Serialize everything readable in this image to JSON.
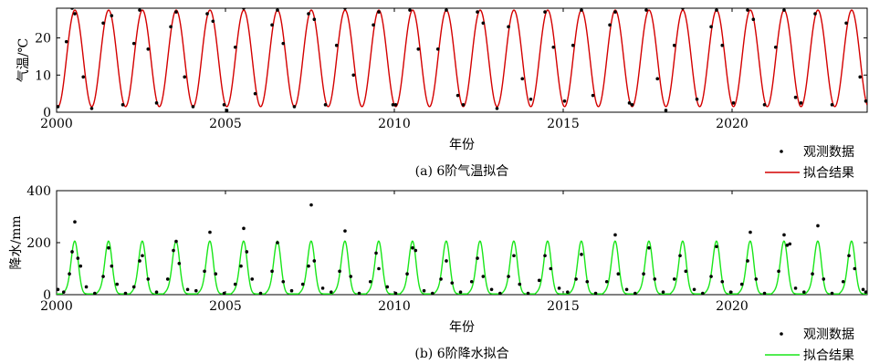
{
  "chart_data": [
    {
      "type": "scatter",
      "panel": "a",
      "caption": "(a) 6阶气温拟合",
      "xlabel": "年份",
      "ylabel": "气温/℃",
      "xlim": [
        2000,
        2024
      ],
      "ylim": [
        0,
        28
      ],
      "xticks": [
        2000,
        2005,
        2010,
        2015,
        2020
      ],
      "yticks": [
        0,
        10,
        20
      ],
      "grid": false,
      "legend_position": "bottom-right",
      "fit_model": {
        "kind": "annual-harmonic",
        "mean": 14.5,
        "amplitude": 13.0,
        "peak_month": 7.0
      },
      "series": [
        {
          "name": "观测数据",
          "style": "markers",
          "color": "#000000",
          "points": [
            [
              2000.04,
              1.5
            ],
            [
              2000.29,
              19.0
            ],
            [
              2000.46,
              28.0
            ],
            [
              2000.54,
              26.5
            ],
            [
              2000.79,
              9.5
            ],
            [
              2001.04,
              1.0
            ],
            [
              2001.38,
              24.0
            ],
            [
              2001.54,
              28.5
            ],
            [
              2001.63,
              26.0
            ],
            [
              2001.96,
              2.0
            ],
            [
              2002.29,
              18.5
            ],
            [
              2002.46,
              27.5
            ],
            [
              2002.71,
              17.0
            ],
            [
              2002.96,
              2.5
            ],
            [
              2003.38,
              23.0
            ],
            [
              2003.54,
              27.0
            ],
            [
              2003.79,
              9.5
            ],
            [
              2004.04,
              1.5
            ],
            [
              2004.46,
              26.5
            ],
            [
              2004.63,
              24.5
            ],
            [
              2004.96,
              2.0
            ],
            [
              2005.04,
              0.5
            ],
            [
              2005.29,
              17.5
            ],
            [
              2005.54,
              28.0
            ],
            [
              2005.88,
              5.0
            ],
            [
              2006.38,
              23.5
            ],
            [
              2006.54,
              27.5
            ],
            [
              2006.71,
              18.5
            ],
            [
              2007.04,
              1.5
            ],
            [
              2007.46,
              26.5
            ],
            [
              2007.63,
              25.0
            ],
            [
              2007.96,
              2.0
            ],
            [
              2008.04,
              -1.0
            ],
            [
              2008.29,
              18.0
            ],
            [
              2008.54,
              28.0
            ],
            [
              2008.79,
              10.0
            ],
            [
              2009.38,
              23.5
            ],
            [
              2009.54,
              27.0
            ],
            [
              2009.96,
              2.0
            ],
            [
              2010.04,
              2.0
            ],
            [
              2010.46,
              27.5
            ],
            [
              2010.71,
              17.0
            ],
            [
              2011.04,
              -1.5
            ],
            [
              2011.29,
              17.0
            ],
            [
              2011.54,
              27.5
            ],
            [
              2011.88,
              4.5
            ],
            [
              2012.04,
              2.0
            ],
            [
              2012.46,
              27.0
            ],
            [
              2012.63,
              24.0
            ],
            [
              2013.04,
              1.0
            ],
            [
              2013.38,
              23.0
            ],
            [
              2013.54,
              28.5
            ],
            [
              2013.79,
              9.0
            ],
            [
              2014.04,
              3.5
            ],
            [
              2014.46,
              27.0
            ],
            [
              2014.71,
              17.5
            ],
            [
              2015.04,
              3.0
            ],
            [
              2015.29,
              18.0
            ],
            [
              2015.54,
              27.5
            ],
            [
              2015.88,
              4.5
            ],
            [
              2016.38,
              23.5
            ],
            [
              2016.54,
              27.0
            ],
            [
              2016.96,
              2.5
            ],
            [
              2017.04,
              2.0
            ],
            [
              2017.46,
              27.5
            ],
            [
              2017.54,
              29.0
            ],
            [
              2017.79,
              9.0
            ],
            [
              2018.04,
              0.5
            ],
            [
              2018.29,
              18.0
            ],
            [
              2018.54,
              28.0
            ],
            [
              2018.96,
              3.5
            ],
            [
              2019.38,
              23.0
            ],
            [
              2019.54,
              27.5
            ],
            [
              2019.71,
              18.0
            ],
            [
              2020.04,
              2.5
            ],
            [
              2020.46,
              27.5
            ],
            [
              2020.63,
              25.0
            ],
            [
              2020.96,
              2.0
            ],
            [
              2021.29,
              17.5
            ],
            [
              2021.54,
              27.5
            ],
            [
              2021.88,
              4.0
            ],
            [
              2022.04,
              2.5
            ],
            [
              2022.46,
              26.5
            ],
            [
              2022.54,
              28.5
            ],
            [
              2022.96,
              2.0
            ],
            [
              2023.38,
              24.0
            ],
            [
              2023.54,
              28.5
            ],
            [
              2023.79,
              9.5
            ],
            [
              2023.96,
              3.0
            ]
          ]
        },
        {
          "name": "拟合结果",
          "style": "line",
          "color": "#d40000"
        }
      ]
    },
    {
      "type": "scatter",
      "panel": "b",
      "caption": "(b) 6阶降水拟合",
      "xlabel": "年份",
      "ylabel": "降水/mm",
      "xlim": [
        2000,
        2024
      ],
      "ylim": [
        0,
        400
      ],
      "xticks": [
        2000,
        2005,
        2010,
        2015,
        2020
      ],
      "yticks": [
        0,
        200,
        400
      ],
      "grid": false,
      "legend_position": "bottom-right",
      "fit_model": {
        "kind": "seasonal-peak",
        "base": 3,
        "peak": 192,
        "peak_month": 7.0,
        "sharpness": 4.5,
        "shoulder": 20
      },
      "series": [
        {
          "name": "观测数据",
          "style": "markers",
          "color": "#000000",
          "points": [
            [
              2000.04,
              20
            ],
            [
              2000.21,
              10
            ],
            [
              2000.38,
              80
            ],
            [
              2000.46,
              165
            ],
            [
              2000.54,
              280
            ],
            [
              2000.63,
              140
            ],
            [
              2000.71,
              110
            ],
            [
              2000.88,
              30
            ],
            [
              2001.13,
              5
            ],
            [
              2001.38,
              70
            ],
            [
              2001.54,
              180
            ],
            [
              2001.63,
              110
            ],
            [
              2001.79,
              40
            ],
            [
              2002.04,
              5
            ],
            [
              2002.29,
              30
            ],
            [
              2002.46,
              130
            ],
            [
              2002.54,
              150
            ],
            [
              2002.71,
              60
            ],
            [
              2002.96,
              10
            ],
            [
              2003.29,
              60
            ],
            [
              2003.46,
              170
            ],
            [
              2003.54,
              205
            ],
            [
              2003.63,
              120
            ],
            [
              2003.88,
              20
            ],
            [
              2004.13,
              15
            ],
            [
              2004.38,
              90
            ],
            [
              2004.54,
              240
            ],
            [
              2004.71,
              80
            ],
            [
              2004.96,
              5
            ],
            [
              2005.29,
              40
            ],
            [
              2005.46,
              110
            ],
            [
              2005.54,
              255
            ],
            [
              2005.63,
              165
            ],
            [
              2005.79,
              60
            ],
            [
              2006.04,
              5
            ],
            [
              2006.38,
              90
            ],
            [
              2006.54,
              200
            ],
            [
              2006.71,
              50
            ],
            [
              2006.96,
              15
            ],
            [
              2007.29,
              40
            ],
            [
              2007.46,
              110
            ],
            [
              2007.54,
              345
            ],
            [
              2007.63,
              130
            ],
            [
              2007.88,
              25
            ],
            [
              2008.13,
              10
            ],
            [
              2008.38,
              90
            ],
            [
              2008.54,
              245
            ],
            [
              2008.71,
              70
            ],
            [
              2008.96,
              5
            ],
            [
              2009.29,
              50
            ],
            [
              2009.46,
              160
            ],
            [
              2009.54,
              100
            ],
            [
              2009.79,
              30
            ],
            [
              2010.04,
              5
            ],
            [
              2010.38,
              80
            ],
            [
              2010.54,
              180
            ],
            [
              2010.63,
              170
            ],
            [
              2010.88,
              15
            ],
            [
              2011.13,
              5
            ],
            [
              2011.38,
              60
            ],
            [
              2011.54,
              130
            ],
            [
              2011.71,
              45
            ],
            [
              2011.96,
              10
            ],
            [
              2012.29,
              50
            ],
            [
              2012.46,
              140
            ],
            [
              2012.63,
              70
            ],
            [
              2012.88,
              20
            ],
            [
              2013.13,
              5
            ],
            [
              2013.38,
              70
            ],
            [
              2013.54,
              150
            ],
            [
              2013.71,
              40
            ],
            [
              2013.96,
              5
            ],
            [
              2014.29,
              55
            ],
            [
              2014.46,
              150
            ],
            [
              2014.63,
              100
            ],
            [
              2014.88,
              25
            ],
            [
              2015.13,
              10
            ],
            [
              2015.38,
              60
            ],
            [
              2015.54,
              155
            ],
            [
              2015.71,
              50
            ],
            [
              2015.96,
              5
            ],
            [
              2016.29,
              50
            ],
            [
              2016.54,
              230
            ],
            [
              2016.63,
              80
            ],
            [
              2016.88,
              20
            ],
            [
              2017.13,
              5
            ],
            [
              2017.38,
              80
            ],
            [
              2017.54,
              180
            ],
            [
              2017.71,
              60
            ],
            [
              2017.96,
              10
            ],
            [
              2018.29,
              60
            ],
            [
              2018.46,
              150
            ],
            [
              2018.63,
              90
            ],
            [
              2018.88,
              20
            ],
            [
              2019.13,
              5
            ],
            [
              2019.38,
              70
            ],
            [
              2019.54,
              185
            ],
            [
              2019.71,
              50
            ],
            [
              2019.96,
              10
            ],
            [
              2020.29,
              40
            ],
            [
              2020.46,
              130
            ],
            [
              2020.54,
              240
            ],
            [
              2020.71,
              60
            ],
            [
              2020.96,
              5
            ],
            [
              2021.38,
              90
            ],
            [
              2021.54,
              230
            ],
            [
              2021.63,
              190
            ],
            [
              2021.71,
              195
            ],
            [
              2021.88,
              25
            ],
            [
              2022.13,
              10
            ],
            [
              2022.38,
              80
            ],
            [
              2022.54,
              265
            ],
            [
              2022.71,
              60
            ],
            [
              2022.96,
              5
            ],
            [
              2023.29,
              50
            ],
            [
              2023.46,
              150
            ],
            [
              2023.63,
              100
            ],
            [
              2023.88,
              20
            ],
            [
              2023.96,
              10
            ]
          ]
        },
        {
          "name": "拟合结果",
          "style": "line",
          "color": "#19e619"
        }
      ]
    }
  ]
}
